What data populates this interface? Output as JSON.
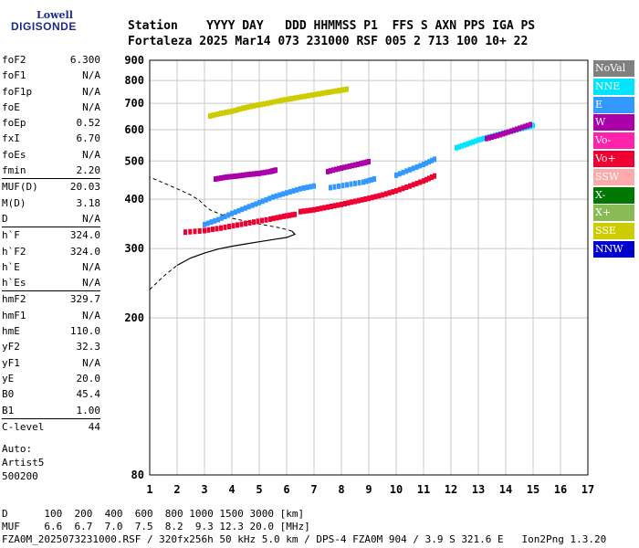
{
  "logo": {
    "line1": "Lowell",
    "line2": "DIGISONDE"
  },
  "header": {
    "labels": "Station    YYYY DAY   DDD HHMMSS P1  FFS S AXN PPS IGA PS",
    "values": "Fortaleza 2025 Mar14 073 231000 RSF 005 2 713 100 10+ 22"
  },
  "params": {
    "group1": [
      {
        "k": "foF2",
        "v": "6.300"
      },
      {
        "k": "foF1",
        "v": "N/A"
      },
      {
        "k": "foF1p",
        "v": "N/A"
      },
      {
        "k": "foE",
        "v": "N/A"
      },
      {
        "k": "foEp",
        "v": "0.52"
      },
      {
        "k": "fxI",
        "v": "6.70"
      },
      {
        "k": "foEs",
        "v": "N/A"
      },
      {
        "k": "fmin",
        "v": "2.20"
      }
    ],
    "group2": [
      {
        "k": "MUF(D)",
        "v": "20.03"
      },
      {
        "k": "M(D)",
        "v": "3.18"
      },
      {
        "k": "D",
        "v": "N/A"
      }
    ],
    "group3": [
      {
        "k": "h`F",
        "v": "324.0"
      },
      {
        "k": "h`F2",
        "v": "324.0"
      },
      {
        "k": "h`E",
        "v": "N/A"
      },
      {
        "k": "h`Es",
        "v": "N/A"
      }
    ],
    "group4": [
      {
        "k": "hmF2",
        "v": "329.7"
      },
      {
        "k": "hmF1",
        "v": "N/A"
      },
      {
        "k": "hmE",
        "v": "110.0"
      },
      {
        "k": "yF2",
        "v": "32.3"
      },
      {
        "k": "yF1",
        "v": "N/A"
      },
      {
        "k": "yE",
        "v": "20.0"
      },
      {
        "k": "B0",
        "v": "45.4"
      },
      {
        "k": "B1",
        "v": "1.00"
      }
    ],
    "group5": [
      {
        "k": "C-level",
        "v": "44"
      }
    ]
  },
  "auto": {
    "line1": "Auto:",
    "line2": "Artist5",
    "line3": "500200"
  },
  "legend": [
    {
      "label": "NoVal",
      "color": "#808080"
    },
    {
      "label": "NNE",
      "color": "#00e5ff"
    },
    {
      "label": "E",
      "color": "#3399ff"
    },
    {
      "label": "W",
      "color": "#aa00aa"
    },
    {
      "label": "Vo-",
      "color": "#ff22aa"
    },
    {
      "label": "Vo+",
      "color": "#ee0033"
    },
    {
      "label": "SSW",
      "color": "#ffaaaa"
    },
    {
      "label": "X-",
      "color": "#007700"
    },
    {
      "label": "X+",
      "color": "#88bb55"
    },
    {
      "label": "SSE",
      "color": "#cccc00"
    },
    {
      "label": "NNW",
      "color": "#0000cc"
    }
  ],
  "footer": {
    "d_row": "D      100  200  400  600  800 1000 1500 3000 [km]",
    "muf_row": "MUF    6.6  6.7  7.0  7.5  8.2  9.3 12.3 20.0 [MHz]",
    "info_row": "FZA0M_2025073231000.RSF / 320fx256h 50 kHz 5.0 km / DPS-4 FZA0M 904 / 3.9 S 321.6 E   Ion2Png 1.3.20"
  },
  "chart_data": {
    "type": "scatter",
    "xlim": [
      1,
      17
    ],
    "ylim": [
      80,
      900
    ],
    "x_ticks": [
      1,
      2,
      3,
      4,
      5,
      6,
      7,
      8,
      9,
      10,
      11,
      12,
      13,
      14,
      15,
      16,
      17
    ],
    "y_ticks": [
      80,
      200,
      300,
      400,
      500,
      600,
      700,
      800,
      900
    ],
    "grid": true,
    "y_scale": "log",
    "legend_position": "right",
    "traces": [
      {
        "name": "Vo+",
        "points": [
          [
            2.3,
            330
          ],
          [
            3.0,
            333
          ],
          [
            3.6,
            338
          ],
          [
            4.2,
            344
          ],
          [
            4.8,
            350
          ],
          [
            5.4,
            356
          ],
          [
            5.9,
            362
          ],
          [
            6.3,
            366
          ]
        ]
      },
      {
        "name": "Vo+",
        "points": [
          [
            6.5,
            372
          ],
          [
            7.0,
            376
          ],
          [
            7.5,
            382
          ],
          [
            8.0,
            388
          ],
          [
            8.5,
            395
          ],
          [
            9.0,
            402
          ],
          [
            9.5,
            410
          ],
          [
            10.0,
            420
          ],
          [
            10.5,
            432
          ],
          [
            11.0,
            445
          ],
          [
            11.4,
            458
          ]
        ]
      },
      {
        "name": "E",
        "points": [
          [
            3.0,
            345
          ],
          [
            3.5,
            355
          ],
          [
            4.0,
            368
          ],
          [
            4.5,
            380
          ],
          [
            5.0,
            392
          ],
          [
            5.5,
            405
          ],
          [
            6.0,
            415
          ],
          [
            6.5,
            425
          ],
          [
            7.0,
            432
          ]
        ]
      },
      {
        "name": "E",
        "points": [
          [
            7.6,
            428
          ],
          [
            8.2,
            435
          ],
          [
            8.8,
            442
          ],
          [
            9.2,
            450
          ]
        ]
      },
      {
        "name": "E",
        "points": [
          [
            10.0,
            460
          ],
          [
            10.5,
            475
          ],
          [
            11.0,
            490
          ],
          [
            11.4,
            505
          ]
        ]
      },
      {
        "name": "W",
        "points": [
          [
            3.4,
            450
          ],
          [
            3.8,
            455
          ],
          [
            4.2,
            458
          ],
          [
            4.6,
            462
          ],
          [
            5.0,
            465
          ],
          [
            5.4,
            470
          ],
          [
            5.6,
            474
          ]
        ]
      },
      {
        "name": "W",
        "points": [
          [
            7.5,
            470
          ],
          [
            7.9,
            478
          ],
          [
            8.3,
            485
          ],
          [
            8.7,
            492
          ],
          [
            9.0,
            498
          ]
        ]
      },
      {
        "name": "NNE",
        "points": [
          [
            12.2,
            540
          ],
          [
            12.6,
            552
          ],
          [
            13.0,
            565
          ],
          [
            13.4,
            575
          ],
          [
            13.8,
            585
          ],
          [
            14.2,
            595
          ],
          [
            14.6,
            605
          ],
          [
            15.0,
            615
          ]
        ]
      },
      {
        "name": "W",
        "points": [
          [
            13.3,
            570
          ],
          [
            13.7,
            580
          ],
          [
            14.1,
            592
          ],
          [
            14.5,
            605
          ],
          [
            14.9,
            618
          ]
        ]
      },
      {
        "name": "SSE",
        "points": [
          [
            3.2,
            650
          ],
          [
            3.6,
            660
          ],
          [
            4.0,
            668
          ],
          [
            4.4,
            680
          ],
          [
            4.8,
            690
          ],
          [
            5.3,
            700
          ],
          [
            5.8,
            712
          ],
          [
            6.3,
            722
          ],
          [
            6.8,
            732
          ],
          [
            7.3,
            742
          ],
          [
            7.8,
            752
          ],
          [
            8.2,
            760
          ]
        ]
      }
    ],
    "profile": {
      "name": "profile",
      "points": [
        [
          1.0,
          236
        ],
        [
          1.5,
          255
        ],
        [
          2.0,
          272
        ],
        [
          2.5,
          284
        ],
        [
          3.0,
          292
        ],
        [
          3.5,
          299
        ],
        [
          4.0,
          304
        ],
        [
          4.5,
          308
        ],
        [
          5.0,
          312
        ],
        [
          5.5,
          316
        ],
        [
          6.0,
          320
        ],
        [
          6.3,
          326
        ],
        [
          6.2,
          332
        ],
        [
          5.8,
          338
        ],
        [
          5.0,
          346
        ],
        [
          4.5,
          352
        ],
        [
          4.0,
          358
        ],
        [
          3.6,
          366
        ],
        [
          3.2,
          376
        ],
        [
          3.0,
          386
        ],
        [
          2.8,
          398
        ],
        [
          2.5,
          410
        ],
        [
          2.0,
          425
        ],
        [
          1.5,
          440
        ],
        [
          1.0,
          455
        ]
      ]
    }
  }
}
